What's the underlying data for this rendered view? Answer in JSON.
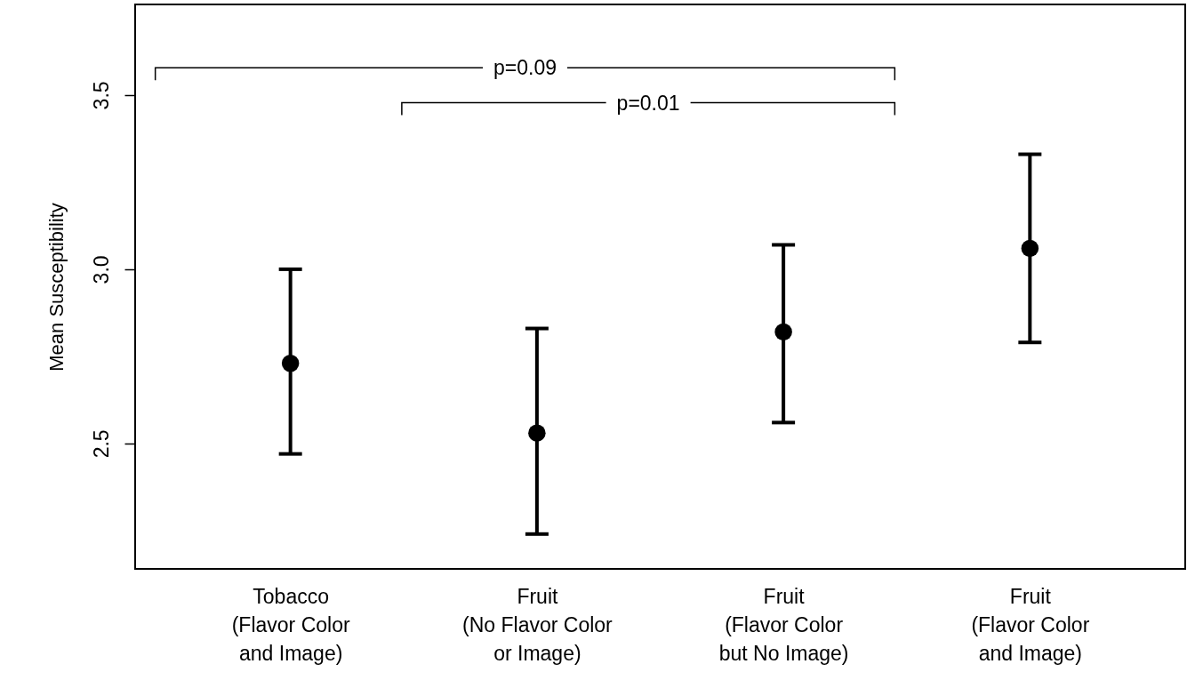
{
  "chart_data": {
    "type": "scatter",
    "ylabel": "Mean Susceptibility",
    "categories": [
      "Tobacco\n(Flavor Color\nand Image)",
      "Fruit\n(No Flavor Color\nor Image)",
      "Fruit\n(Flavor Color\nbut No Image)",
      "Fruit\n(Flavor Color\nand Image)"
    ],
    "values": [
      2.73,
      2.53,
      2.82,
      3.06
    ],
    "errors": [
      [
        2.47,
        3.0
      ],
      [
        2.24,
        2.83
      ],
      [
        2.56,
        3.07
      ],
      [
        2.79,
        3.33
      ]
    ],
    "color": "#000000",
    "marker": "circle",
    "ylim": [
      2.14,
      3.76
    ],
    "yticks": [
      {
        "value": 2.5,
        "label": "2.5"
      },
      {
        "value": 3,
        "label": "3.0"
      },
      {
        "value": 3.5,
        "label": "3.5"
      }
    ],
    "annotations": [
      "p=0.09",
      "p=0.01"
    ],
    "grid": false
  }
}
